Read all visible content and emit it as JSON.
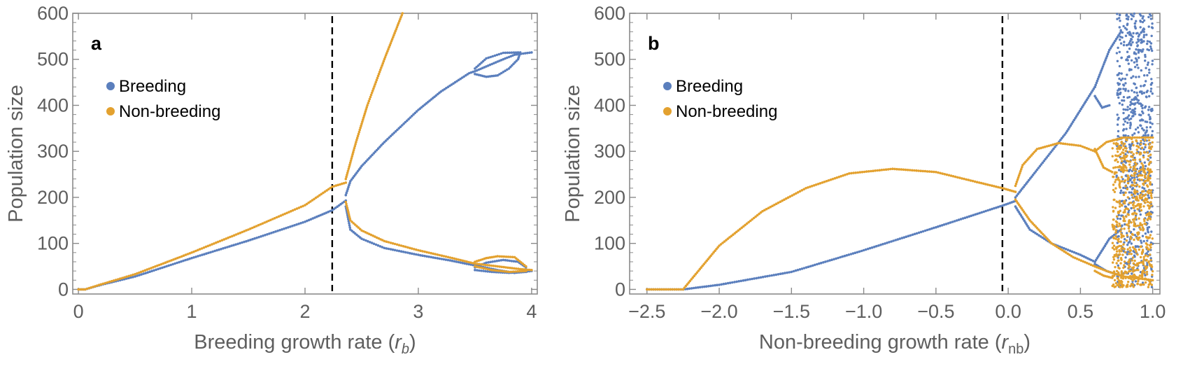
{
  "colors": {
    "breeding": "#5b7fbd",
    "non_breeding": "#e3a12f",
    "frame": "#8a8a8a",
    "tick_text": "#5e5e5e",
    "dashed": "#000000"
  },
  "chart_data": [
    {
      "type": "scatter",
      "panel": "a",
      "xlabel_text": "Breeding growth rate (",
      "xlabel_var": "r",
      "xlabel_sub": "b",
      "xlabel_close": ")",
      "ylabel": "Population size",
      "xlim": [
        -0.05,
        4.05
      ],
      "ylim": [
        -10,
        600
      ],
      "xticks": [
        0,
        1,
        2,
        3,
        4
      ],
      "yticks": [
        0,
        100,
        200,
        300,
        400,
        500,
        600
      ],
      "threshold_x": 2.24,
      "legend": {
        "position": "upper-left",
        "entries": [
          "Breeding",
          "Non-breeding"
        ]
      },
      "series": [
        {
          "name": "Breeding",
          "segments": [
            [
              [
                0,
                0
              ],
              [
                0.06,
                0
              ],
              [
                0.2,
                10
              ],
              [
                0.5,
                28
              ],
              [
                1.0,
                68
              ],
              [
                1.5,
                106
              ],
              [
                2.0,
                147
              ],
              [
                2.24,
                172
              ],
              [
                2.36,
                193
              ]
            ],
            [
              [
                2.36,
                205
              ],
              [
                2.4,
                235
              ],
              [
                2.5,
                268
              ],
              [
                2.7,
                320
              ],
              [
                3.0,
                390
              ],
              [
                3.2,
                430
              ],
              [
                3.45,
                470
              ],
              [
                3.5,
                474
              ],
              [
                3.7,
                495
              ],
              [
                3.85,
                510
              ],
              [
                4.0,
                515
              ]
            ],
            [
              [
                3.5,
                480
              ],
              [
                3.6,
                502
              ],
              [
                3.75,
                514
              ],
              [
                3.88,
                515
              ]
            ],
            [
              [
                3.5,
                468
              ],
              [
                3.6,
                462
              ],
              [
                3.7,
                465
              ],
              [
                3.8,
                480
              ],
              [
                3.88,
                500
              ],
              [
                3.9,
                515
              ]
            ],
            [
              [
                2.36,
                180
              ],
              [
                2.4,
                130
              ],
              [
                2.5,
                110
              ],
              [
                2.7,
                90
              ],
              [
                3.0,
                75
              ],
              [
                3.3,
                62
              ],
              [
                3.5,
                52
              ],
              [
                3.7,
                42
              ],
              [
                3.85,
                36
              ],
              [
                4.0,
                40
              ]
            ],
            [
              [
                3.5,
                48
              ],
              [
                3.6,
                58
              ],
              [
                3.75,
                64
              ],
              [
                3.88,
                60
              ],
              [
                3.95,
                48
              ]
            ],
            [
              [
                3.5,
                42
              ],
              [
                3.65,
                38
              ],
              [
                3.8,
                36
              ],
              [
                3.95,
                38
              ]
            ]
          ]
        },
        {
          "name": "Non-breeding",
          "segments": [
            [
              [
                0,
                0
              ],
              [
                0.06,
                0
              ],
              [
                0.2,
                11
              ],
              [
                0.5,
                33
              ],
              [
                1.0,
                80
              ],
              [
                1.5,
                130
              ],
              [
                2.0,
                183
              ],
              [
                2.24,
                223
              ],
              [
                2.36,
                232
              ]
            ],
            [
              [
                2.36,
                240
              ],
              [
                2.45,
                320
              ],
              [
                2.55,
                400
              ],
              [
                2.7,
                500
              ],
              [
                2.86,
                600
              ]
            ],
            [
              [
                2.36,
                190
              ],
              [
                2.4,
                150
              ],
              [
                2.5,
                128
              ],
              [
                2.7,
                105
              ],
              [
                3.0,
                85
              ],
              [
                3.3,
                68
              ],
              [
                3.5,
                56
              ],
              [
                3.7,
                50
              ],
              [
                3.9,
                44
              ],
              [
                4.0,
                42
              ]
            ],
            [
              [
                3.5,
                60
              ],
              [
                3.6,
                68
              ],
              [
                3.7,
                72
              ],
              [
                3.85,
                70
              ],
              [
                3.95,
                50
              ]
            ],
            [
              [
                3.5,
                50
              ],
              [
                3.65,
                42
              ],
              [
                3.8,
                38
              ],
              [
                3.95,
                40
              ]
            ]
          ]
        }
      ]
    },
    {
      "type": "scatter",
      "panel": "b",
      "xlabel_text": "Non-breeding growth rate (",
      "xlabel_var": "r",
      "xlabel_sub": "nb",
      "xlabel_close": ")",
      "ylabel": "Population size",
      "xlim": [
        -2.62,
        1.05
      ],
      "ylim": [
        -10,
        600
      ],
      "xticks": [
        -2.5,
        -2.0,
        -1.5,
        -1.0,
        -0.5,
        0.0,
        0.5,
        1.0
      ],
      "xtick_labels": [
        "−2.5",
        "−2.0",
        "−1.5",
        "−1.0",
        "−0.5",
        "0.0",
        "0.5",
        "1.0"
      ],
      "yticks": [
        0,
        100,
        200,
        300,
        400,
        500,
        600
      ],
      "threshold_x": -0.04,
      "legend": {
        "position": "upper-left",
        "entries": [
          "Breeding",
          "Non-breeding"
        ]
      },
      "series": [
        {
          "name": "Breeding",
          "segments": [
            [
              [
                -2.5,
                0
              ],
              [
                -2.25,
                0
              ],
              [
                -2.0,
                10
              ],
              [
                -1.5,
                38
              ],
              [
                -1.0,
                85
              ],
              [
                -0.5,
                135
              ],
              [
                -0.04,
                182
              ],
              [
                0.05,
                192
              ]
            ],
            [
              [
                0.05,
                200
              ],
              [
                0.2,
                260
              ],
              [
                0.4,
                340
              ],
              [
                0.6,
                440
              ]
            ],
            [
              [
                0.05,
                180
              ],
              [
                0.15,
                130
              ],
              [
                0.3,
                100
              ],
              [
                0.5,
                75
              ],
              [
                0.6,
                60
              ]
            ],
            [
              [
                0.6,
                440
              ],
              [
                0.7,
                520
              ],
              [
                0.78,
                560
              ]
            ],
            [
              [
                0.6,
                420
              ],
              [
                0.65,
                395
              ],
              [
                0.7,
                400
              ]
            ],
            [
              [
                0.6,
                60
              ],
              [
                0.7,
                110
              ],
              [
                0.78,
                130
              ]
            ],
            [
              [
                0.6,
                55
              ],
              [
                0.68,
                40
              ],
              [
                0.78,
                30
              ]
            ]
          ],
          "chaos": {
            "x_range": [
              0.75,
              1.0
            ],
            "y_range": [
              5,
              600
            ],
            "count": 700,
            "seed": 11
          }
        },
        {
          "name": "Non-breeding",
          "segments": [
            [
              [
                -2.5,
                0
              ],
              [
                -2.25,
                0
              ],
              [
                -2.0,
                95
              ],
              [
                -1.7,
                170
              ],
              [
                -1.4,
                220
              ],
              [
                -1.1,
                252
              ],
              [
                -0.8,
                262
              ],
              [
                -0.5,
                255
              ],
              [
                -0.2,
                232
              ],
              [
                -0.04,
                220
              ],
              [
                0.05,
                212
              ]
            ],
            [
              [
                0.05,
                225
              ],
              [
                0.1,
                270
              ],
              [
                0.2,
                305
              ],
              [
                0.35,
                318
              ],
              [
                0.5,
                312
              ],
              [
                0.6,
                300
              ]
            ],
            [
              [
                0.05,
                195
              ],
              [
                0.15,
                150
              ],
              [
                0.3,
                100
              ],
              [
                0.45,
                70
              ],
              [
                0.6,
                50
              ]
            ],
            [
              [
                0.6,
                300
              ],
              [
                0.68,
                320
              ],
              [
                0.8,
                330
              ],
              [
                1.0,
                330
              ]
            ],
            [
              [
                0.6,
                305
              ],
              [
                0.66,
                265
              ],
              [
                0.72,
                255
              ]
            ],
            [
              [
                0.6,
                50
              ],
              [
                0.68,
                40
              ],
              [
                0.8,
                28
              ],
              [
                1.0,
                20
              ]
            ],
            [
              [
                0.6,
                40
              ],
              [
                0.66,
                30
              ],
              [
                0.72,
                25
              ]
            ]
          ],
          "chaos": {
            "x_range": [
              0.72,
              1.0
            ],
            "y_range": [
              5,
              330
            ],
            "count": 650,
            "seed": 29
          }
        }
      ]
    }
  ]
}
